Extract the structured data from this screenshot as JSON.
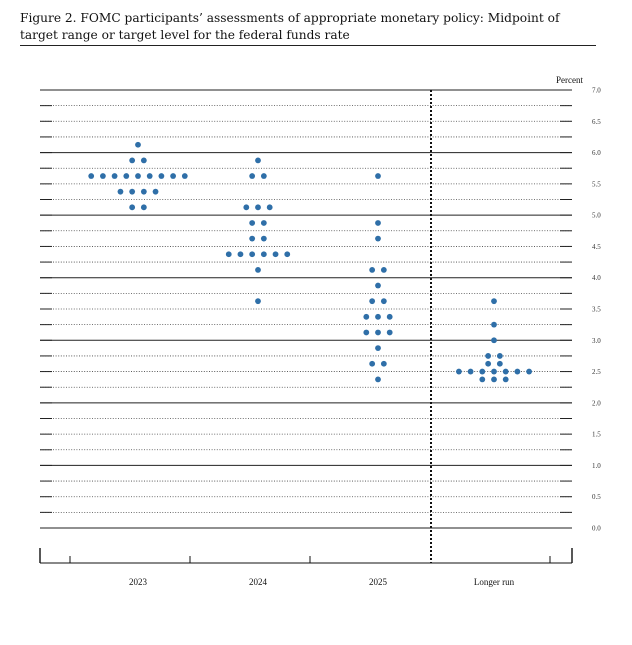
{
  "figure": {
    "title": "Figure 2.  FOMC participants’ assessments of appropriate monetary policy:  Midpoint of target range or target level for the federal funds rate"
  },
  "chart_data": {
    "type": "scatter",
    "ylabel": "Percent",
    "ylim": [
      0.0,
      7.0
    ],
    "yticks": [
      "0.0",
      "0.5",
      "1.0",
      "1.5",
      "2.0",
      "2.5",
      "3.0",
      "3.5",
      "4.0",
      "4.5",
      "5.0",
      "5.5",
      "6.0",
      "6.5",
      "7.0"
    ],
    "categories": [
      "2023",
      "2024",
      "2025",
      "Longer run"
    ],
    "series": [
      {
        "x": "2023",
        "values": [
          {
            "y": 6.125,
            "count": 1
          },
          {
            "y": 5.875,
            "count": 2
          },
          {
            "y": 5.625,
            "count": 9
          },
          {
            "y": 5.375,
            "count": 4
          },
          {
            "y": 5.125,
            "count": 2
          }
        ]
      },
      {
        "x": "2024",
        "values": [
          {
            "y": 5.875,
            "count": 1
          },
          {
            "y": 5.625,
            "count": 2
          },
          {
            "y": 5.125,
            "count": 3
          },
          {
            "y": 4.875,
            "count": 2
          },
          {
            "y": 4.625,
            "count": 2
          },
          {
            "y": 4.375,
            "count": 6
          },
          {
            "y": 4.125,
            "count": 1
          },
          {
            "y": 3.625,
            "count": 1
          }
        ]
      },
      {
        "x": "2025",
        "values": [
          {
            "y": 5.625,
            "count": 1
          },
          {
            "y": 4.875,
            "count": 1
          },
          {
            "y": 4.625,
            "count": 1
          },
          {
            "y": 4.125,
            "count": 2
          },
          {
            "y": 3.875,
            "count": 1
          },
          {
            "y": 3.625,
            "count": 2
          },
          {
            "y": 3.375,
            "count": 3
          },
          {
            "y": 3.125,
            "count": 3
          },
          {
            "y": 2.875,
            "count": 1
          },
          {
            "y": 2.625,
            "count": 2
          },
          {
            "y": 2.375,
            "count": 1
          }
        ]
      },
      {
        "x": "Longer run",
        "values": [
          {
            "y": 3.625,
            "count": 1
          },
          {
            "y": 3.25,
            "count": 1
          },
          {
            "y": 3.0,
            "count": 1
          },
          {
            "y": 2.75,
            "count": 2
          },
          {
            "y": 2.625,
            "count": 2
          },
          {
            "y": 2.5,
            "count": 7
          },
          {
            "y": 2.375,
            "count": 3
          }
        ]
      }
    ],
    "separator_after": "2025",
    "grid": true,
    "dot_color": "#2f6fa8"
  }
}
